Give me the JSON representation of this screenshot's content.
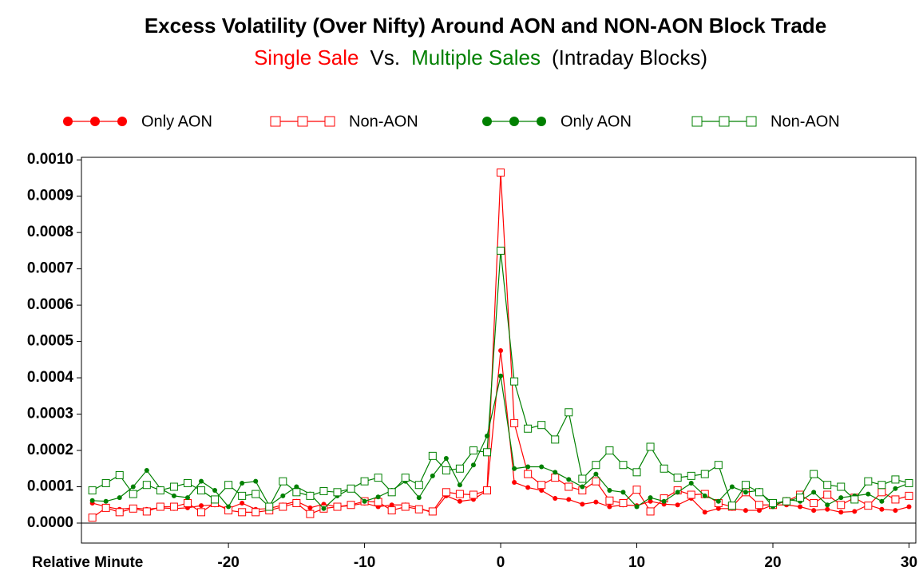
{
  "chart_data": {
    "type": "line",
    "title": "Excess Volatility (Over Nifty) Around AON and NON-AON Block Trade",
    "subtitle_parts": [
      {
        "text": "Single Sale",
        "color": "#ff0000"
      },
      {
        "text": "Vs.",
        "color": "#000000"
      },
      {
        "text": "Multiple Sales",
        "color": "#008000"
      },
      {
        "text": "(Intraday Blocks)",
        "color": "#000000"
      }
    ],
    "x_label": "Relative Minute",
    "x": [
      -30,
      -29,
      -28,
      -27,
      -26,
      -25,
      -24,
      -23,
      -22,
      -21,
      -20,
      -19,
      -18,
      -17,
      -16,
      -15,
      -14,
      -13,
      -12,
      -11,
      -10,
      -9,
      -8,
      -7,
      -6,
      -5,
      -4,
      -3,
      -2,
      -1,
      0,
      1,
      2,
      3,
      4,
      5,
      6,
      7,
      8,
      9,
      10,
      11,
      12,
      13,
      14,
      15,
      16,
      17,
      18,
      19,
      20,
      21,
      22,
      23,
      24,
      25,
      26,
      27,
      28,
      29,
      30
    ],
    "xlim": [
      -30.8,
      30.5
    ],
    "xticks": [
      -20,
      -10,
      0,
      10,
      20,
      30
    ],
    "ylim": [
      -5.5e-05,
      0.001007
    ],
    "yticks": [
      {
        "value": 0,
        "label": "0.0000"
      },
      {
        "value": 0.0001,
        "label": "0.0001"
      },
      {
        "value": 0.0002,
        "label": "0.0002"
      },
      {
        "value": 0.0003,
        "label": "0.0003"
      },
      {
        "value": 0.0004,
        "label": "0.0004"
      },
      {
        "value": 0.0005,
        "label": "0.0005"
      },
      {
        "value": 0.0006,
        "label": "0.0006"
      },
      {
        "value": 0.0007,
        "label": "0.0007"
      },
      {
        "value": 0.0008,
        "label": "0.0008"
      },
      {
        "value": 0.0009,
        "label": "0.0009"
      },
      {
        "value": 0.001,
        "label": "0.0010"
      }
    ],
    "series": [
      {
        "name": "Only AON",
        "color": "#ff0000",
        "marker": "dot",
        "values": [
          5.5e-05,
          4.5e-05,
          3.8e-05,
          4.2e-05,
          3.8e-05,
          4.2e-05,
          4e-05,
          4.2e-05,
          4.8e-05,
          5e-05,
          4e-05,
          5.5e-05,
          3.8e-05,
          4e-05,
          5e-05,
          6e-05,
          4.2e-05,
          5.2e-05,
          4.5e-05,
          4.8e-05,
          5.5e-05,
          4.5e-05,
          5e-05,
          5e-05,
          4.2e-05,
          2.8e-05,
          7.5e-05,
          6e-05,
          6.5e-05,
          9e-05,
          0.000475,
          0.000112,
          9.8e-05,
          9e-05,
          6.8e-05,
          6.5e-05,
          5.2e-05,
          5.8e-05,
          4.5e-05,
          5e-05,
          4.8e-05,
          6e-05,
          5.2e-05,
          5e-05,
          6.8e-05,
          3e-05,
          4e-05,
          4e-05,
          3.5e-05,
          3.5e-05,
          5e-05,
          5e-05,
          4.5e-05,
          3.5e-05,
          3.8e-05,
          3e-05,
          3.2e-05,
          5e-05,
          3.8e-05,
          3.5e-05,
          4.5e-05
        ]
      },
      {
        "name": "Non-AON",
        "color": "#ff0000",
        "marker": "square",
        "values": [
          1.5e-05,
          4.2e-05,
          3e-05,
          4e-05,
          3.2e-05,
          4.5e-05,
          4.5e-05,
          5.5e-05,
          3e-05,
          5.5e-05,
          3.5e-05,
          3e-05,
          3e-05,
          3.5e-05,
          4.5e-05,
          5.5e-05,
          2.5e-05,
          4e-05,
          4.5e-05,
          5e-05,
          6e-05,
          5.8e-05,
          3.5e-05,
          4.5e-05,
          3.8e-05,
          3.2e-05,
          8.5e-05,
          8e-05,
          7.8e-05,
          9e-05,
          0.000965,
          0.000275,
          0.000135,
          0.000105,
          0.000125,
          0.0001,
          9e-05,
          0.000115,
          6.2e-05,
          5.5e-05,
          9.2e-05,
          3.2e-05,
          6.8e-05,
          9e-05,
          7.8e-05,
          8e-05,
          5.5e-05,
          4.5e-05,
          8.5e-05,
          5e-05,
          5e-05,
          6e-05,
          7.8e-05,
          5.5e-05,
          7.8e-05,
          5e-05,
          7e-05,
          4.8e-05,
          8.5e-05,
          6.5e-05,
          7.5e-05
        ]
      },
      {
        "name": "Only AON",
        "color": "#008000",
        "marker": "dot",
        "values": [
          6.2e-05,
          6e-05,
          7e-05,
          0.0001,
          0.000145,
          9.5e-05,
          7.5e-05,
          7e-05,
          0.000115,
          9e-05,
          4.5e-05,
          0.00011,
          0.000115,
          4.8e-05,
          7.5e-05,
          0.0001,
          8e-05,
          4e-05,
          7.5e-05,
          9.5e-05,
          6e-05,
          7.2e-05,
          9e-05,
          0.000115,
          7e-05,
          0.00013,
          0.000178,
          0.000105,
          0.00016,
          0.00024,
          0.000405,
          0.00015,
          0.000155,
          0.000155,
          0.00014,
          0.00012,
          0.0001,
          0.000135,
          9e-05,
          8.5e-05,
          4.5e-05,
          7e-05,
          6e-05,
          8.5e-05,
          0.00011,
          7.5e-05,
          6e-05,
          0.0001,
          8.5e-05,
          9e-05,
          4.5e-05,
          6.5e-05,
          6e-05,
          8.5e-05,
          5e-05,
          7e-05,
          7.5e-05,
          8e-05,
          6e-05,
          9.5e-05,
          0.00011
        ]
      },
      {
        "name": "Non-AON",
        "color": "#008000",
        "marker": "square",
        "values": [
          9e-05,
          0.00011,
          0.000132,
          8e-05,
          0.000105,
          9e-05,
          0.0001,
          0.00011,
          9e-05,
          6.5e-05,
          0.000105,
          7.5e-05,
          8e-05,
          4.5e-05,
          0.000115,
          8.5e-05,
          7.5e-05,
          8.8e-05,
          8.5e-05,
          9.5e-05,
          0.000115,
          0.000125,
          8.5e-05,
          0.000125,
          0.000105,
          0.000185,
          0.000145,
          0.00015,
          0.0002,
          0.000195,
          0.00075,
          0.00039,
          0.00026,
          0.00027,
          0.00023,
          0.000305,
          0.000122,
          0.00016,
          0.0002,
          0.00016,
          0.00014,
          0.00021,
          0.00015,
          0.000125,
          0.00013,
          0.000135,
          0.00016,
          4.8e-05,
          0.000105,
          8.5e-05,
          5.5e-05,
          6e-05,
          7e-05,
          0.000135,
          0.000105,
          0.0001,
          6.5e-05,
          0.000115,
          0.000105,
          0.00012,
          0.00011
        ]
      }
    ]
  }
}
